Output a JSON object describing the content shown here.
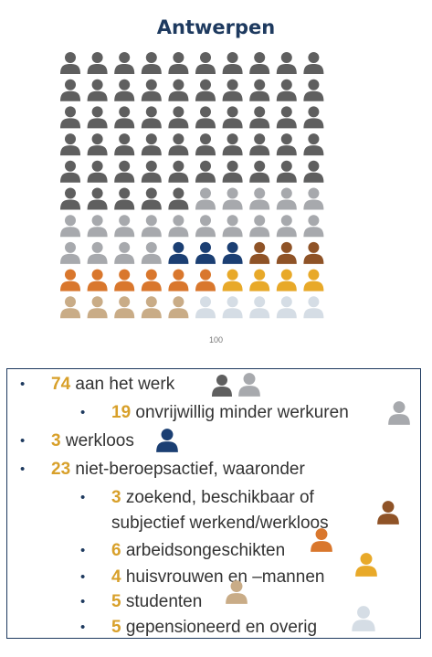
{
  "colors": {
    "title": "#1e3a5f",
    "working_dark": "#5f5f5f",
    "working_light": "#a7a9ad",
    "unemployed": "#1b3f73",
    "seeking": "#8f5327",
    "disabled": "#d9772d",
    "housework": "#e8a929",
    "students": "#c9ac87",
    "retired": "#d5dde5",
    "number": "#d8a02a",
    "bullet": "#1e3a5f"
  },
  "chart_data": {
    "type": "waffle",
    "title": "Antwerpen",
    "total_label": "100",
    "grid": {
      "columns": 10,
      "rows": 10
    },
    "categories": [
      {
        "key": "working_dark",
        "value": 55
      },
      {
        "key": "working_light",
        "value": 19
      },
      {
        "key": "unemployed",
        "value": 3
      },
      {
        "key": "seeking",
        "value": 3
      },
      {
        "key": "disabled",
        "value": 6
      },
      {
        "key": "housework",
        "value": 4
      },
      {
        "key": "students",
        "value": 5
      },
      {
        "key": "retired",
        "value": 5
      }
    ]
  },
  "legend": {
    "items": [
      {
        "num": "74",
        "text": " aan het werk",
        "icons": [
          "working_dark",
          "working_light"
        ]
      },
      {
        "num": "19",
        "text": " onvrijwillig minder werkuren",
        "icons": [
          "working_light"
        ]
      },
      {
        "num": "3",
        "text": " werkloos",
        "icons": [
          "unemployed"
        ]
      },
      {
        "num": "23",
        "text": " niet-beroepsactief, waaronder",
        "icons": []
      },
      {
        "num": "3",
        "text": " zoekend, beschikbaar of",
        "text2": "subjectief werkend/werkloos",
        "icons": [
          "seeking"
        ]
      },
      {
        "num": "6",
        "text": " arbeidsongeschikten",
        "icons": [
          "disabled"
        ]
      },
      {
        "num": "4",
        "text": " huisvrouwen en –mannen",
        "icons": [
          "housework"
        ]
      },
      {
        "num": "5",
        "text": " studenten",
        "icons": [
          "students"
        ]
      },
      {
        "num": "5",
        "text": " gepensioneerd en overig",
        "icons": [
          "retired"
        ]
      }
    ]
  }
}
